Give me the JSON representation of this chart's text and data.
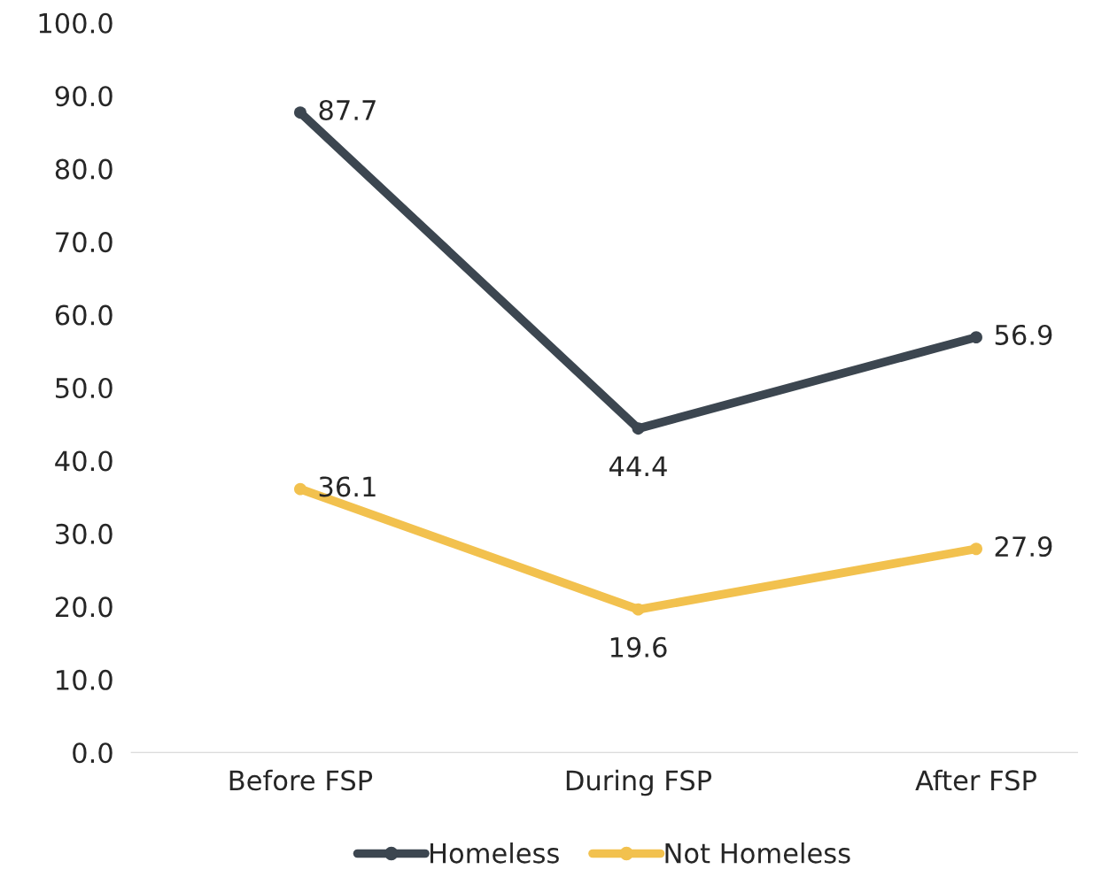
{
  "chart_data": {
    "type": "line",
    "categories": [
      "Before FSP",
      "During FSP",
      "After FSP"
    ],
    "series": [
      {
        "name": "Homeless",
        "color": "#3c4650",
        "values": [
          87.7,
          44.4,
          56.9
        ]
      },
      {
        "name": "Not Homeless",
        "color": "#f2c14e",
        "values": [
          36.1,
          19.6,
          27.9
        ]
      }
    ],
    "ylim": [
      0,
      100
    ],
    "yticks": [
      {
        "value": 0,
        "label": "0.0"
      },
      {
        "value": 10,
        "label": "10.0"
      },
      {
        "value": 20,
        "label": "20.0"
      },
      {
        "value": 30,
        "label": "30.0"
      },
      {
        "value": 40,
        "label": "40.0"
      },
      {
        "value": 50,
        "label": "50.0"
      },
      {
        "value": 60,
        "label": "60.0"
      },
      {
        "value": 70,
        "label": "70.0"
      },
      {
        "value": 80,
        "label": "80.0"
      },
      {
        "value": 90,
        "label": "90.0"
      },
      {
        "value": 100,
        "label": "100.0"
      }
    ],
    "data_labels": true,
    "marker": "circle",
    "line_style": "solid",
    "grid": false,
    "legend": "bottom"
  }
}
